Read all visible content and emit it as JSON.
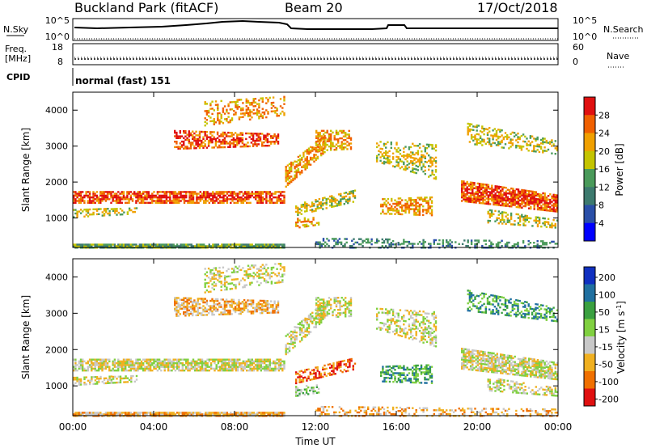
{
  "header": {
    "station": "Buckland Park (fitACF)",
    "beam": "Beam 20",
    "date": "17/Oct/2018"
  },
  "status_panel": {
    "nsky_label": "N.Sky",
    "nsky_ticks": [
      "10^5",
      "10^0"
    ],
    "nsearch_label": "N.Search",
    "nsearch_ticks": [
      "10^5",
      "10^0"
    ],
    "freq_label": "Freq.",
    "freq_unit": "[MHz]",
    "freq_ticks": [
      "18",
      "8"
    ],
    "nave_label": "Nave",
    "nave_ticks": [
      "60",
      "0"
    ],
    "cpid_label": "CPID",
    "cpid_value": "normal (fast) 151"
  },
  "chart_data": [
    {
      "type": "heatmap",
      "panel": "power",
      "ylabel": "Slant Range [km]",
      "y_ticks": [
        "1000",
        "2000",
        "3000",
        "4000"
      ],
      "ylim": [
        180,
        4500
      ],
      "xlim": [
        0,
        24
      ],
      "x_ticks": [
        "00:00",
        "04:00",
        "08:00",
        "12:00",
        "16:00",
        "20:00",
        "00:00"
      ],
      "colorbar_label": "Power [dB]",
      "colorbar_ticks": [
        "4",
        "8",
        "12",
        "16",
        "20",
        "24",
        "28"
      ],
      "colorbar_range": [
        0,
        30
      ],
      "palette": [
        "#0000ff",
        "#2a4fa8",
        "#3d7a6e",
        "#4a9a5a",
        "#c4c400",
        "#f0a000",
        "#f06000",
        "#e01010"
      ]
    },
    {
      "type": "heatmap",
      "panel": "velocity",
      "ylabel": "Slant Range [km]",
      "y_ticks": [
        "1000",
        "2000",
        "3000",
        "4000"
      ],
      "ylim": [
        180,
        4500
      ],
      "xlim": [
        0,
        24
      ],
      "x_ticks": [
        "00:00",
        "04:00",
        "08:00",
        "12:00",
        "16:00",
        "20:00",
        "00:00"
      ],
      "xlabel": "Time UT",
      "colorbar_label": "Velocity [m s^-1]",
      "colorbar_ticks": [
        "200",
        "100",
        "50",
        "15",
        "-15",
        "-50",
        "-100",
        "-200"
      ],
      "palette": [
        "#1030c0",
        "#2070a0",
        "#3aa040",
        "#80d040",
        "#c8c8c8",
        "#f0b020",
        "#f07000",
        "#e01010"
      ]
    }
  ]
}
